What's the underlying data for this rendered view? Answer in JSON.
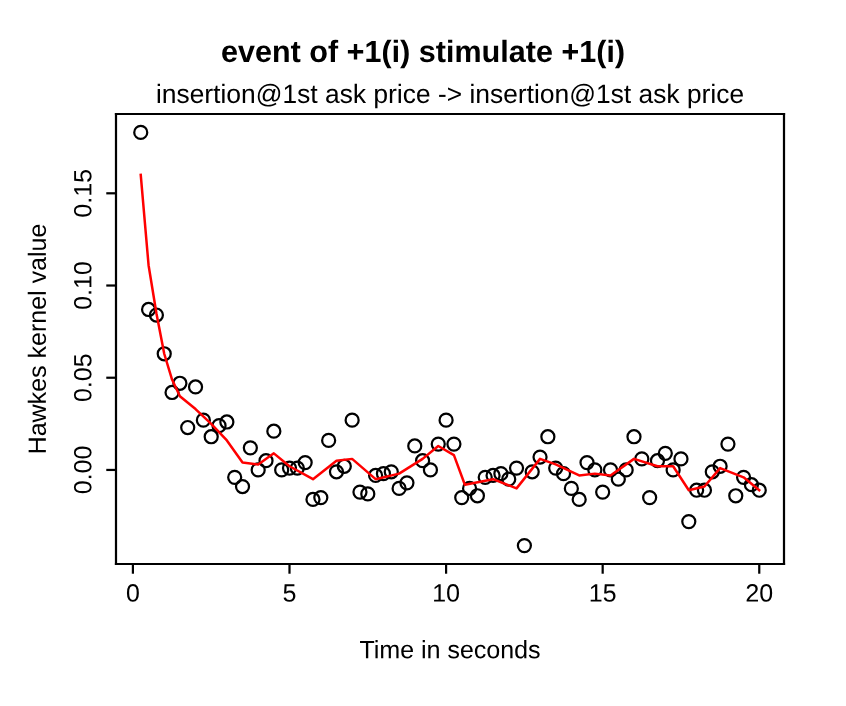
{
  "chart_data": {
    "type": "scatter",
    "title": "event of +1(i) stimulate +1(i)",
    "subtitle": "insertion@1st ask price -> insertion@1st ask price",
    "xlabel": "Time in seconds",
    "ylabel": "Hawkes kernel value",
    "xlim": [
      -0.54,
      20.79
    ],
    "ylim": [
      -0.051,
      0.193
    ],
    "xticks": [
      0,
      5,
      10,
      15,
      20
    ],
    "yticks": [
      {
        "value": 0,
        "label": "0.00"
      },
      {
        "value": 0.05,
        "label": "0.05"
      },
      {
        "value": 0.1,
        "label": "0.10"
      },
      {
        "value": 0.15,
        "label": "0.15"
      }
    ],
    "grid": false,
    "legend": false,
    "series": [
      {
        "color": "#000000",
        "marker": "circle",
        "x": [
          0.25,
          0.5,
          0.75,
          1.0,
          1.25,
          1.5,
          1.75,
          2.0,
          2.25,
          2.5,
          2.75,
          3.0,
          3.25,
          3.5,
          3.75,
          4.0,
          4.25,
          4.5,
          4.75,
          5.0,
          5.25,
          5.5,
          5.75,
          6.0,
          6.25,
          6.5,
          6.75,
          7.0,
          7.25,
          7.5,
          7.75,
          8.0,
          8.25,
          8.5,
          8.75,
          9.0,
          9.25,
          9.5,
          9.75,
          10.0,
          10.25,
          10.5,
          10.75,
          11.0,
          11.25,
          11.5,
          11.75,
          12.0,
          12.25,
          12.5,
          12.75,
          13.0,
          13.25,
          13.5,
          13.75,
          14.0,
          14.25,
          14.5,
          14.75,
          15.0,
          15.25,
          15.5,
          15.75,
          16.0,
          16.25,
          16.5,
          16.75,
          17.0,
          17.25,
          17.5,
          17.75,
          18.0,
          18.25,
          18.5,
          18.75,
          19.0,
          19.25,
          19.5,
          19.75,
          20.0
        ],
        "values": [
          0.183,
          0.087,
          0.084,
          0.063,
          0.042,
          0.047,
          0.023,
          0.045,
          0.027,
          0.018,
          0.024,
          0.026,
          -0.004,
          -0.009,
          0.012,
          0.0,
          0.005,
          0.021,
          0.0,
          0.001,
          0.001,
          0.004,
          -0.016,
          -0.015,
          0.016,
          -0.001,
          0.002,
          0.027,
          -0.012,
          -0.013,
          -0.003,
          -0.002,
          -0.001,
          -0.01,
          -0.007,
          0.013,
          0.005,
          0.0,
          0.014,
          0.027,
          0.014,
          -0.015,
          -0.01,
          -0.014,
          -0.004,
          -0.003,
          -0.002,
          -0.005,
          0.001,
          -0.041,
          -0.001,
          0.007,
          0.018,
          0.001,
          -0.002,
          -0.01,
          -0.016,
          0.004,
          0.0,
          -0.012,
          0.0,
          -0.005,
          0.0,
          0.018,
          0.006,
          -0.015,
          0.005,
          0.009,
          0.0,
          0.006,
          -0.028,
          -0.011,
          -0.011,
          -0.001,
          0.002,
          0.014,
          -0.014,
          -0.004,
          -0.008,
          -0.011
        ]
      },
      {
        "type": "line",
        "color": "#ff0000",
        "marker": "none",
        "line_style": "solid",
        "x": [
          0.25,
          0.5,
          0.75,
          1.0,
          1.25,
          1.5,
          2.0,
          2.5,
          3.0,
          3.5,
          4.0,
          4.5,
          5.0,
          5.75,
          6.5,
          7.0,
          7.75,
          8.5,
          9.25,
          9.75,
          10.25,
          10.6,
          11.5,
          12.25,
          13.0,
          13.5,
          14.25,
          14.75,
          15.25,
          16.0,
          16.75,
          17.25,
          17.75,
          18.25,
          18.75,
          19.5,
          20.0
        ],
        "values": [
          0.16,
          0.111,
          0.085,
          0.063,
          0.049,
          0.04,
          0.033,
          0.025,
          0.016,
          0.004,
          0.003,
          0.009,
          0.002,
          -0.005,
          0.005,
          0.006,
          -0.005,
          -0.002,
          0.006,
          0.013,
          0.008,
          -0.008,
          -0.005,
          -0.01,
          0.006,
          0.003,
          -0.003,
          -0.002,
          -0.003,
          0.006,
          0.002,
          0.002,
          -0.011,
          -0.009,
          0.001,
          -0.004,
          -0.011
        ]
      }
    ]
  }
}
